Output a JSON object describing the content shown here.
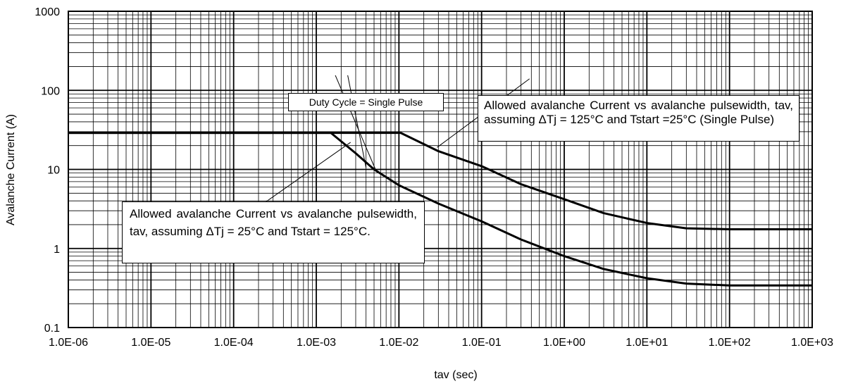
{
  "chart_data": {
    "type": "line",
    "title": "",
    "xlabel": "tav (sec)",
    "ylabel": "Avalanche Current (A)",
    "x_scale": "log",
    "y_scale": "log",
    "xlim": [
      1e-06,
      1000
    ],
    "ylim": [
      0.1,
      1000
    ],
    "grid": true,
    "x_tick_values": [
      1e-06,
      1e-05,
      0.0001,
      0.001,
      0.01,
      0.1,
      1,
      10,
      100,
      1000
    ],
    "x_tick_labels": [
      "1.0E-06",
      "1.0E-05",
      "1.0E-04",
      "1.0E-03",
      "1.0E-02",
      "1.0E-01",
      "1.0E+00",
      "1.0E+01",
      "1.0E+02",
      "1.0E+03"
    ],
    "y_tick_values": [
      0.1,
      1,
      10,
      100,
      1000
    ],
    "y_tick_labels": [
      "0.1",
      "1",
      "10",
      "100",
      "1000"
    ],
    "series": [
      {
        "x": [
          1e-06,
          1e-05,
          0.0001,
          0.001,
          0.0105,
          0.03,
          0.1,
          0.3,
          1,
          3,
          10,
          30,
          100,
          1000
        ],
        "y": [
          29,
          29,
          29,
          29,
          29,
          17,
          11,
          6.5,
          4.2,
          2.8,
          2.1,
          1.8,
          1.75,
          1.75
        ]
      },
      {
        "x": [
          1e-06,
          1e-05,
          0.0001,
          0.001,
          0.0015,
          0.003,
          0.005,
          0.01,
          0.03,
          0.1,
          0.3,
          1,
          3,
          10,
          30,
          100,
          1000
        ],
        "y": [
          29,
          29,
          29,
          29,
          29,
          16,
          10,
          6.3,
          3.7,
          2.2,
          1.3,
          0.8,
          0.55,
          0.42,
          0.36,
          0.34,
          0.34
        ]
      }
    ],
    "annotations": [
      {
        "text": "Duty Cycle = Single Pulse"
      },
      {
        "text": "Allowed avalanche Current vs avalanche pulsewidth, tav, assuming ΔTj = 125°C and Tstart =25°C (Single Pulse)"
      },
      {
        "text": "Allowed avalanche Current vs avalanche pulsewidth, tav, assuming ΔTj = 25°C and Tstart = 125°C."
      }
    ],
    "colors": {
      "line": "#000000",
      "grid": "#000000",
      "background": "#ffffff"
    }
  }
}
